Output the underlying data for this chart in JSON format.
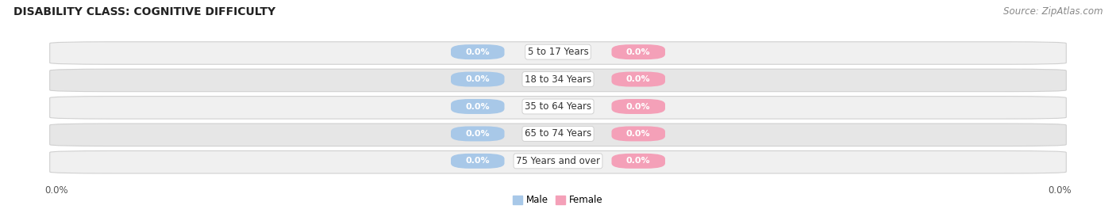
{
  "title": "DISABILITY CLASS: COGNITIVE DIFFICULTY",
  "source": "Source: ZipAtlas.com",
  "categories": [
    "5 to 17 Years",
    "18 to 34 Years",
    "35 to 64 Years",
    "65 to 74 Years",
    "75 Years and over"
  ],
  "male_values": [
    0.0,
    0.0,
    0.0,
    0.0,
    0.0
  ],
  "female_values": [
    0.0,
    0.0,
    0.0,
    0.0,
    0.0
  ],
  "male_color": "#a8c8e8",
  "female_color": "#f4a0b8",
  "title_fontsize": 10,
  "source_fontsize": 8.5,
  "label_fontsize": 8,
  "category_fontsize": 8.5,
  "xlim_left": "0.0%",
  "xlim_right": "0.0%",
  "legend_labels": [
    "Male",
    "Female"
  ],
  "legend_colors": [
    "#a8c8e8",
    "#f4a0b8"
  ],
  "background_color": "#ffffff",
  "stripe_colors": [
    "#f0f0f0",
    "#e6e6e6"
  ],
  "row_border_color": "#d0d0d0",
  "separator_color": "#cccccc"
}
